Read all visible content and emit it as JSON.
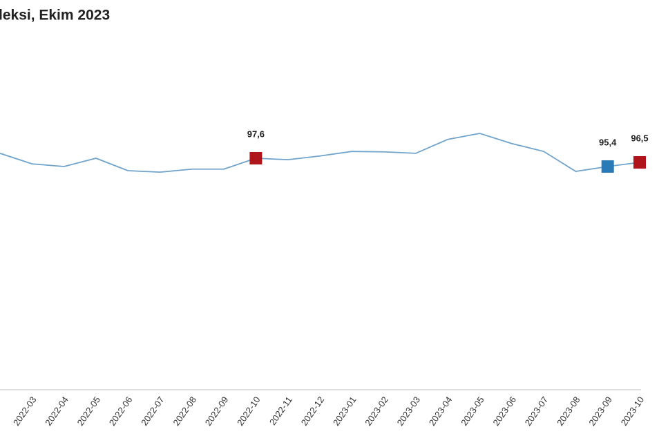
{
  "chart_data": {
    "type": "line",
    "title": "leksi, Ekim 2023",
    "categories": [
      null,
      "2022-03",
      "2022-04",
      "2022-05",
      "2022-06",
      "2022-07",
      "2022-08",
      "2022-09",
      "2022-10",
      "2022-11",
      "2022-12",
      "2023-01",
      "2023-02",
      "2023-03",
      "2023-04",
      "2023-05",
      "2023-06",
      "2023-07",
      "2023-08",
      "2023-09",
      "2023-10"
    ],
    "values": [
      98.9,
      96.1,
      95.4,
      97.6,
      94.3,
      93.9,
      94.7,
      94.7,
      97.6,
      97.2,
      98.2,
      99.4,
      99.3,
      98.9,
      102.6,
      104.2,
      101.5,
      99.4,
      94.1,
      95.4,
      96.5
    ],
    "value_labels": [
      null,
      null,
      null,
      null,
      null,
      null,
      null,
      null,
      "97,6",
      null,
      null,
      null,
      null,
      null,
      null,
      null,
      null,
      null,
      null,
      "95,4",
      "96,5"
    ],
    "point_colors": [
      null,
      null,
      null,
      null,
      null,
      null,
      null,
      null,
      "#b0151c",
      null,
      null,
      null,
      null,
      null,
      null,
      null,
      null,
      null,
      null,
      "#2a7ab8",
      "#b0151c"
    ],
    "color": "#6fa3cc",
    "ylim": [
      36,
      110
    ]
  }
}
